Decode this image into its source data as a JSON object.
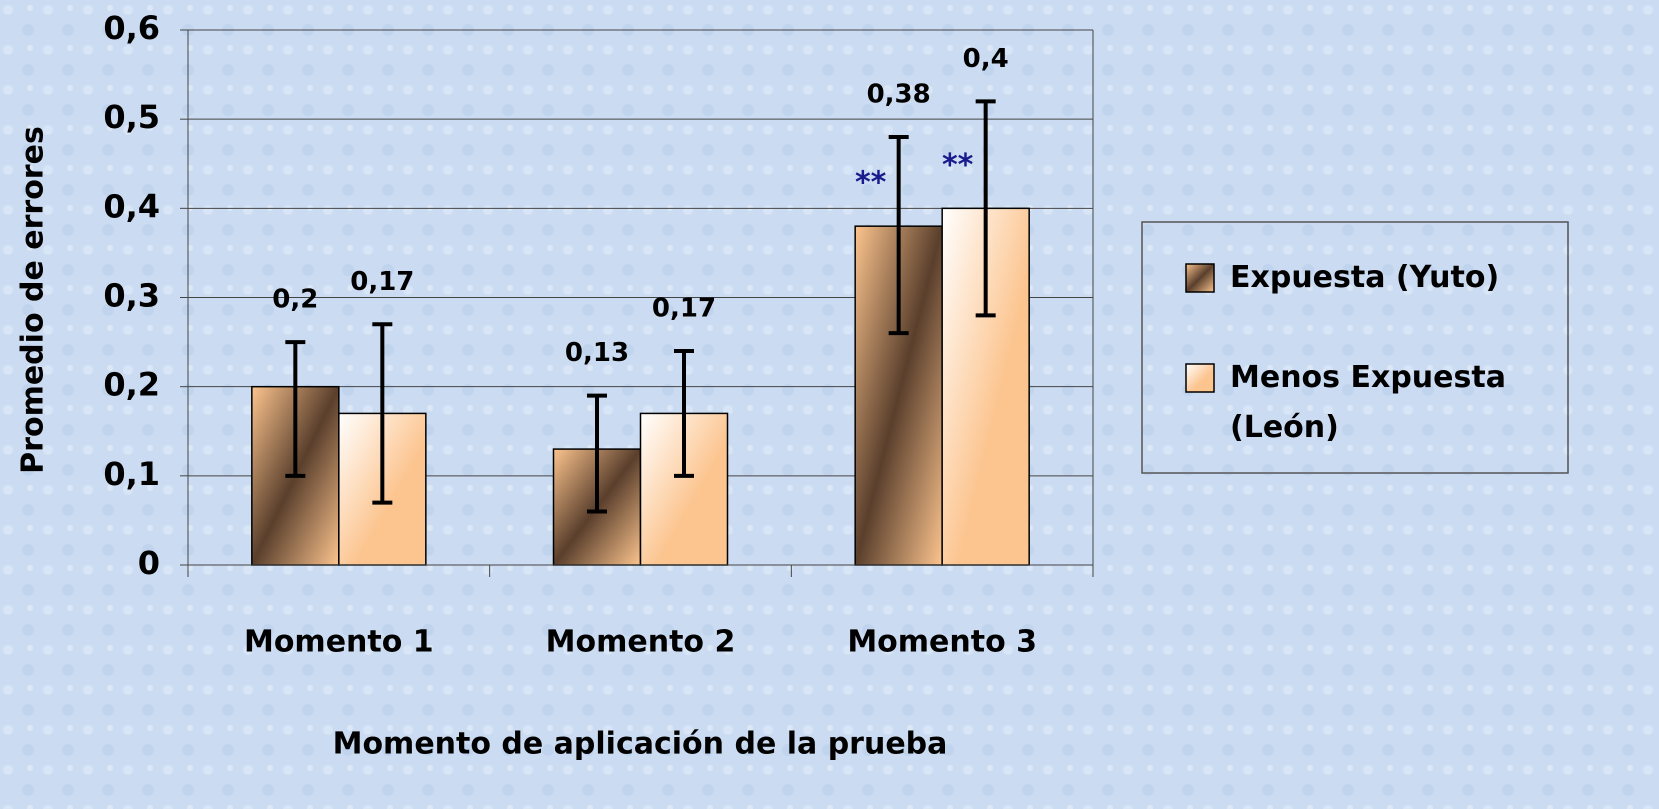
{
  "chart_data": {
    "type": "bar",
    "x_label": "Momento de aplicación de la prueba",
    "y_label": "Promedio de errores",
    "categories": [
      "Momento 1",
      "Momento 2",
      "Momento 3"
    ],
    "series": [
      {
        "name": "Expuesta (Yuto)",
        "color": "#5a3f2c",
        "values": [
          0.2,
          0.13,
          0.38
        ],
        "value_labels": [
          "0,2",
          "0,13",
          "0,38"
        ],
        "error_lower": [
          0.1,
          0.06,
          0.26
        ],
        "error_upper": [
          0.25,
          0.19,
          0.48
        ],
        "annotations": [
          null,
          null,
          "**"
        ]
      },
      {
        "name": "Menos Expuesta (León)",
        "color": "#fcc48e",
        "values": [
          0.17,
          0.17,
          0.4
        ],
        "value_labels": [
          "0,17",
          "0,17",
          "0,4"
        ],
        "error_lower": [
          0.07,
          0.1,
          0.28
        ],
        "error_upper": [
          0.27,
          0.24,
          0.52
        ],
        "annotations": [
          null,
          null,
          "**"
        ]
      }
    ],
    "ylim": [
      0,
      0.6
    ],
    "yticks": [
      0,
      {
        "value": 0.1,
        "label": "0,1"
      },
      {
        "value": 0.2,
        "label": "0,2"
      },
      {
        "value": 0.3,
        "label": "0,3"
      },
      {
        "value": 0.4,
        "label": "0,4"
      },
      {
        "value": 0.5,
        "label": "0,5"
      },
      {
        "value": 0.6,
        "label": "0,6"
      }
    ],
    "grid": true,
    "legend": "right"
  }
}
